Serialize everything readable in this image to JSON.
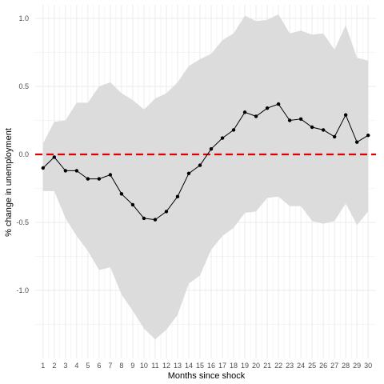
{
  "chart_data": {
    "type": "line",
    "title": "",
    "xlabel": "Months since shock",
    "ylabel": "% change in unemployment",
    "x": [
      1,
      2,
      3,
      4,
      5,
      6,
      7,
      8,
      9,
      10,
      11,
      12,
      13,
      14,
      15,
      16,
      17,
      18,
      19,
      20,
      21,
      22,
      23,
      24,
      25,
      26,
      27,
      28,
      29,
      30
    ],
    "x_ticks": [
      "1",
      "2",
      "3",
      "4",
      "5",
      "6",
      "7",
      "8",
      "9",
      "10",
      "11",
      "12",
      "13",
      "14",
      "15",
      "16",
      "17",
      "18",
      "19",
      "20",
      "21",
      "22",
      "23",
      "24",
      "25",
      "26",
      "27",
      "28",
      "29",
      "30"
    ],
    "y_ticks": [
      -1.0,
      -0.5,
      0.0,
      0.5,
      1.0
    ],
    "y_tick_labels": [
      "-1.0",
      "-0.5",
      "0.0",
      "0.5",
      "1.0"
    ],
    "xlim": [
      0.3,
      30.7
    ],
    "ylim": [
      -1.5,
      1.1
    ],
    "grid": true,
    "legend": "none",
    "series": [
      {
        "values": [
          -0.1,
          -0.02,
          -0.12,
          -0.12,
          -0.18,
          -0.18,
          -0.15,
          -0.29,
          -0.37,
          -0.47,
          -0.48,
          -0.42,
          -0.31,
          -0.14,
          -0.08,
          0.04,
          0.12,
          0.18,
          0.31,
          0.28,
          0.34,
          0.37,
          0.25,
          0.26,
          0.2,
          0.18,
          0.13,
          0.29,
          0.09,
          0.14
        ],
        "lower": [
          -0.27,
          -0.27,
          -0.47,
          -0.6,
          -0.71,
          -0.85,
          -0.83,
          -1.03,
          -1.15,
          -1.28,
          -1.36,
          -1.29,
          -1.18,
          -0.95,
          -0.89,
          -0.7,
          -0.6,
          -0.54,
          -0.43,
          -0.42,
          -0.32,
          -0.31,
          -0.38,
          -0.38,
          -0.49,
          -0.51,
          -0.49,
          -0.36,
          -0.52,
          -0.42
        ],
        "upper": [
          0.08,
          0.24,
          0.25,
          0.38,
          0.38,
          0.5,
          0.53,
          0.45,
          0.4,
          0.33,
          0.41,
          0.45,
          0.53,
          0.65,
          0.7,
          0.74,
          0.84,
          0.89,
          1.02,
          0.98,
          0.99,
          1.03,
          0.89,
          0.91,
          0.88,
          0.89,
          0.77,
          0.95,
          0.71,
          0.69
        ],
        "line_color": "#000000",
        "band_color": "#dadada"
      }
    ],
    "reference_line": {
      "y": 0,
      "color": "#e00000",
      "style": "dashed"
    },
    "colors": {
      "panel_bg": "#ffffff",
      "grid": "#ebebeb"
    }
  }
}
